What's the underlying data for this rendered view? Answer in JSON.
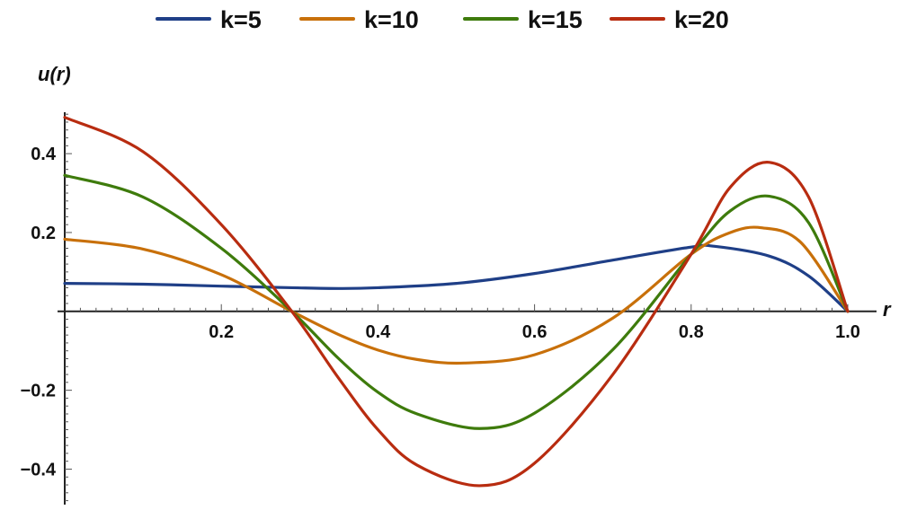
{
  "chart_data": {
    "type": "line",
    "xlabel": "r",
    "ylabel": "u(r)",
    "xlim": [
      0,
      1.0
    ],
    "ylim": [
      -0.49,
      0.505
    ],
    "xticks": [
      0.2,
      0.4,
      0.6,
      0.8,
      1.0
    ],
    "xtick_labels": [
      "0.2",
      "0.4",
      "0.6",
      "0.8",
      "1.0"
    ],
    "yticks": [
      -0.4,
      -0.2,
      0.2,
      0.4
    ],
    "ytick_labels": [
      "−0.4",
      "−0.2",
      "0.2",
      "0.4"
    ],
    "grid": false,
    "legend_position": "top",
    "series": [
      {
        "name": "k=5",
        "color": "#1f3f87",
        "x": [
          0,
          0.1,
          0.2,
          0.29,
          0.35,
          0.4,
          0.5,
          0.6,
          0.7,
          0.8,
          0.83,
          0.9,
          0.95,
          1.0
        ],
        "y": [
          0.071,
          0.069,
          0.064,
          0.06,
          0.058,
          0.06,
          0.071,
          0.096,
          0.13,
          0.163,
          0.165,
          0.14,
          0.09,
          0.0
        ]
      },
      {
        "name": "k=10",
        "color": "#c8700a",
        "x": [
          0,
          0.1,
          0.2,
          0.29,
          0.35,
          0.4,
          0.45,
          0.51,
          0.6,
          0.7,
          0.8,
          0.85,
          0.89,
          0.94,
          1.0
        ],
        "y": [
          0.183,
          0.158,
          0.093,
          0.0,
          -0.059,
          -0.098,
          -0.122,
          -0.131,
          -0.11,
          -0.017,
          0.145,
          0.2,
          0.212,
          0.175,
          0.0
        ]
      },
      {
        "name": "k=15",
        "color": "#3e7b0c",
        "x": [
          0,
          0.1,
          0.2,
          0.29,
          0.35,
          0.4,
          0.45,
          0.53,
          0.6,
          0.7,
          0.8,
          0.85,
          0.9,
          0.95,
          1.0
        ],
        "y": [
          0.345,
          0.29,
          0.16,
          0.0,
          -0.12,
          -0.205,
          -0.26,
          -0.297,
          -0.258,
          -0.097,
          0.145,
          0.255,
          0.292,
          0.225,
          0.0
        ]
      },
      {
        "name": "k=20",
        "color": "#b82c10",
        "x": [
          0,
          0.1,
          0.2,
          0.29,
          0.35,
          0.4,
          0.45,
          0.53,
          0.6,
          0.7,
          0.8,
          0.85,
          0.9,
          0.95,
          1.0
        ],
        "y": [
          0.492,
          0.405,
          0.22,
          0.0,
          -0.17,
          -0.3,
          -0.39,
          -0.442,
          -0.385,
          -0.16,
          0.145,
          0.315,
          0.378,
          0.29,
          0.0
        ]
      }
    ]
  }
}
